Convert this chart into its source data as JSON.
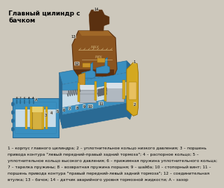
{
  "title": "Главный цилиндр с\nбачком",
  "title_fontsize": 6.5,
  "bg_color": "#cdc8bc",
  "caption_lines": [
    "1 – корпус главного цилиндра; 2 – уплотнительное кольцо низкого давления; 3 – поршень",
    "привода контура \"левый передний-правый задний тормоза\"; 4 – распорное кольцо; 5 –",
    "уплотнительное кольцо высокого давления; 6 – прижимная пружина уплотнительного кольца;",
    "7 – тарелка пружины; 8 – возвратная пружина поршня; 9 – шайба; 10 – стопорный винт; 11 –",
    "поршень привода контура \"правый передний-левый задний тормоза\"; 12 – соединительная",
    "втулка; 13 – бачок; 14 – датчик аварийного уровня тормозной жидкости; A – зазор"
  ],
  "caption_fontsize": 4.2,
  "cy": "#3a8fc0",
  "cy_dark": "#2a6a94",
  "cy_light": "#7bbcd8",
  "res_body": "#8B5520",
  "res_dark": "#5a3010",
  "res_light": "#a06828",
  "yel": "#d4a820",
  "yel_dark": "#9a7000",
  "silver": "#b0b8c0",
  "silver_dark": "#707880",
  "brass": "#c8922a",
  "inner_bore": "#c8dce8"
}
